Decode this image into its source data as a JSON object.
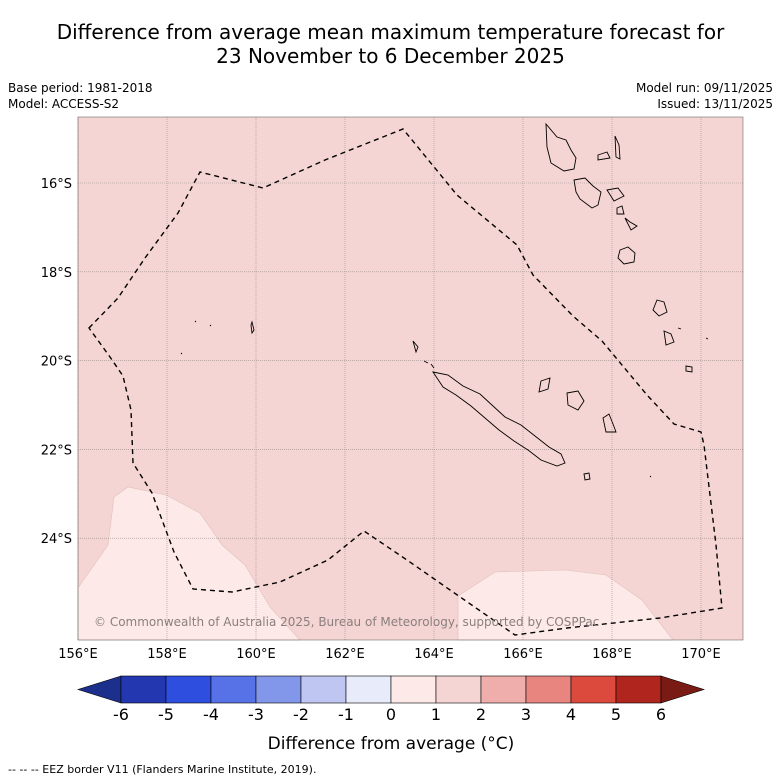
{
  "title": {
    "line1": "Difference from average mean maximum temperature forecast for",
    "line2": "23 November to 6 December 2025"
  },
  "meta_left": {
    "base_period": "Base period: 1981-2018",
    "model": "Model: ACCESS-S2"
  },
  "meta_right": {
    "model_run": "Model run: 09/11/2025",
    "issued": "Issued: 13/11/2025"
  },
  "map": {
    "lon_labels": [
      "156°E",
      "158°E",
      "160°E",
      "162°E",
      "164°E",
      "166°E",
      "168°E",
      "170°E"
    ],
    "lat_labels": [
      "16°S",
      "18°S",
      "20°S",
      "22°S",
      "24°S"
    ],
    "lon_range": [
      156,
      171
    ],
    "lat_range": [
      -26.5,
      -14.5
    ],
    "copyright": "© Commonwealth of Australia 2025, Bureau of Meteorology, supported by COSPPac",
    "fill_colors": {
      "zero_to_one": "#fde9e7",
      "one_to_two": "#f5d5d3"
    }
  },
  "colorbar": {
    "ticks": [
      "-6",
      "-5",
      "-4",
      "-3",
      "-2",
      "-1",
      "0",
      "1",
      "2",
      "3",
      "4",
      "5",
      "6"
    ],
    "colors": [
      "#1c2f8c",
      "#2338b0",
      "#2e4ee0",
      "#5771e6",
      "#8397ea",
      "#bfc6f2",
      "#e8ebfa",
      "#fde9e7",
      "#f5d5d3",
      "#efaeab",
      "#e8857f",
      "#dc4a3e",
      "#b0261e",
      "#7a1a14"
    ],
    "title": "Difference from average (°C)"
  },
  "footer": "-- -- -- EEZ border V11 (Flanders Marine Institute, 2019)."
}
